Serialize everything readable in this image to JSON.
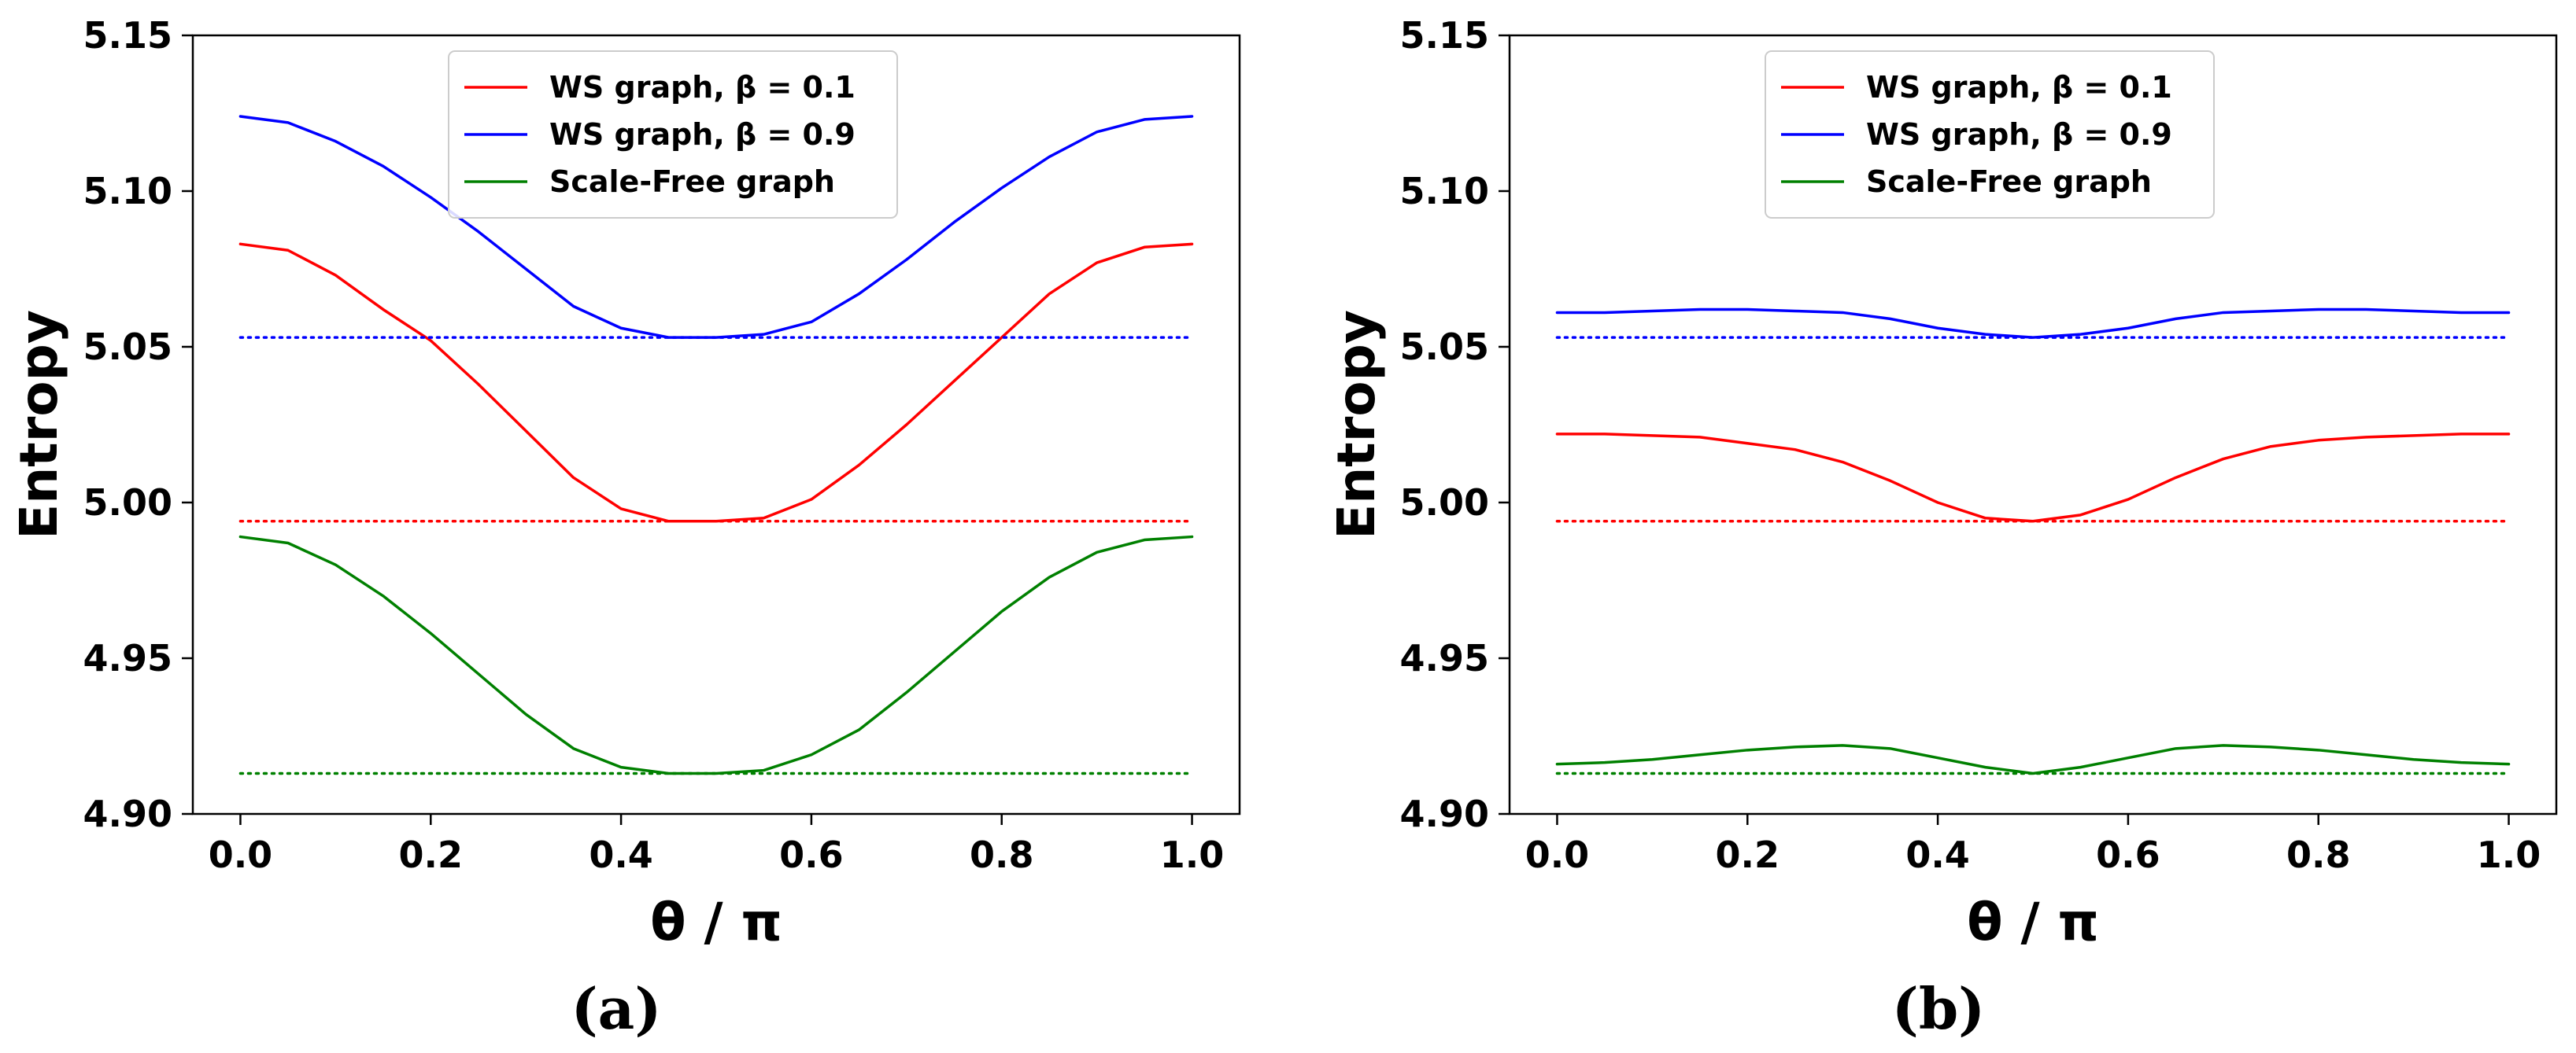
{
  "chart_data": [
    {
      "type": "line",
      "caption": "(a)",
      "xlabel": "θ / π",
      "ylabel": "Entropy",
      "xlim": [
        -0.05,
        1.05
      ],
      "ylim": [
        4.9,
        5.15
      ],
      "xticks": [
        "0.0",
        "0.2",
        "0.4",
        "0.6",
        "0.8",
        "1.0"
      ],
      "yticks": [
        "4.90",
        "4.95",
        "5.00",
        "5.05",
        "5.10",
        "5.15"
      ],
      "legend_position": "upper center",
      "series": [
        {
          "name": "WS graph, β = 0.1",
          "color": "#ff0000",
          "style": "solid",
          "x": [
            0.0,
            0.05,
            0.1,
            0.15,
            0.2,
            0.25,
            0.3,
            0.35,
            0.4,
            0.45,
            0.5,
            0.55,
            0.6,
            0.65,
            0.7,
            0.75,
            0.8,
            0.85,
            0.9,
            0.95,
            1.0
          ],
          "y": [
            5.083,
            5.081,
            5.073,
            5.062,
            5.052,
            5.038,
            5.023,
            5.008,
            4.998,
            4.994,
            4.994,
            4.995,
            5.001,
            5.012,
            5.025,
            5.039,
            5.053,
            5.067,
            5.077,
            5.082,
            5.083
          ]
        },
        {
          "name": "WS graph, β = 0.9",
          "color": "#0000ff",
          "style": "solid",
          "x": [
            0.0,
            0.05,
            0.1,
            0.15,
            0.2,
            0.25,
            0.3,
            0.35,
            0.4,
            0.45,
            0.5,
            0.55,
            0.6,
            0.65,
            0.7,
            0.75,
            0.8,
            0.85,
            0.9,
            0.95,
            1.0
          ],
          "y": [
            5.124,
            5.122,
            5.116,
            5.108,
            5.098,
            5.087,
            5.075,
            5.063,
            5.056,
            5.053,
            5.053,
            5.054,
            5.058,
            5.067,
            5.078,
            5.09,
            5.101,
            5.111,
            5.119,
            5.123,
            5.124
          ]
        },
        {
          "name": "Scale-Free graph",
          "color": "#008000",
          "style": "solid",
          "x": [
            0.0,
            0.05,
            0.1,
            0.15,
            0.2,
            0.25,
            0.3,
            0.35,
            0.4,
            0.45,
            0.5,
            0.55,
            0.6,
            0.65,
            0.7,
            0.75,
            0.8,
            0.85,
            0.9,
            0.95,
            1.0
          ],
          "y": [
            4.989,
            4.987,
            4.98,
            4.97,
            4.958,
            4.945,
            4.932,
            4.921,
            4.915,
            4.913,
            4.913,
            4.914,
            4.919,
            4.927,
            4.939,
            4.952,
            4.965,
            4.976,
            4.984,
            4.988,
            4.989
          ]
        },
        {
          "name": "",
          "color": "#0000ff",
          "style": "dotted",
          "x": [
            0.0,
            1.0
          ],
          "y": [
            5.053,
            5.053
          ]
        },
        {
          "name": "",
          "color": "#ff0000",
          "style": "dotted",
          "x": [
            0.0,
            1.0
          ],
          "y": [
            4.994,
            4.994
          ]
        },
        {
          "name": "",
          "color": "#008000",
          "style": "dotted",
          "x": [
            0.0,
            1.0
          ],
          "y": [
            4.913,
            4.913
          ]
        }
      ]
    },
    {
      "type": "line",
      "caption": "(b)",
      "xlabel": "θ / π",
      "ylabel": "Entropy",
      "xlim": [
        -0.05,
        1.05
      ],
      "ylim": [
        4.9,
        5.15
      ],
      "xticks": [
        "0.0",
        "0.2",
        "0.4",
        "0.6",
        "0.8",
        "1.0"
      ],
      "yticks": [
        "4.90",
        "4.95",
        "5.00",
        "5.05",
        "5.10",
        "5.15"
      ],
      "legend_position": "upper center",
      "series": [
        {
          "name": "WS graph, β = 0.1",
          "color": "#ff0000",
          "style": "solid",
          "x": [
            0.0,
            0.05,
            0.1,
            0.15,
            0.2,
            0.25,
            0.3,
            0.35,
            0.4,
            0.45,
            0.5,
            0.55,
            0.6,
            0.65,
            0.7,
            0.75,
            0.8,
            0.85,
            0.9,
            0.95,
            1.0
          ],
          "y": [
            5.022,
            5.022,
            5.0215,
            5.021,
            5.019,
            5.017,
            5.013,
            5.007,
            5.0,
            4.995,
            4.994,
            4.996,
            5.001,
            5.008,
            5.014,
            5.018,
            5.02,
            5.021,
            5.0215,
            5.022,
            5.022
          ]
        },
        {
          "name": "WS graph, β = 0.9",
          "color": "#0000ff",
          "style": "solid",
          "x": [
            0.0,
            0.05,
            0.1,
            0.15,
            0.2,
            0.25,
            0.3,
            0.35,
            0.4,
            0.45,
            0.5,
            0.55,
            0.6,
            0.65,
            0.7,
            0.75,
            0.8,
            0.85,
            0.9,
            0.95,
            1.0
          ],
          "y": [
            5.061,
            5.061,
            5.0615,
            5.062,
            5.062,
            5.0615,
            5.061,
            5.059,
            5.056,
            5.054,
            5.053,
            5.054,
            5.056,
            5.059,
            5.061,
            5.0615,
            5.062,
            5.062,
            5.0615,
            5.061,
            5.061
          ]
        },
        {
          "name": "Scale-Free graph",
          "color": "#008000",
          "style": "solid",
          "x": [
            0.0,
            0.05,
            0.1,
            0.15,
            0.2,
            0.25,
            0.3,
            0.35,
            0.4,
            0.45,
            0.5,
            0.55,
            0.6,
            0.65,
            0.7,
            0.75,
            0.8,
            0.85,
            0.9,
            0.95,
            1.0
          ],
          "y": [
            4.916,
            4.9165,
            4.9175,
            4.919,
            4.9205,
            4.9215,
            4.922,
            4.921,
            4.918,
            4.915,
            4.913,
            4.915,
            4.918,
            4.921,
            4.922,
            4.9215,
            4.9205,
            4.919,
            4.9175,
            4.9165,
            4.916
          ]
        },
        {
          "name": "",
          "color": "#0000ff",
          "style": "dotted",
          "x": [
            0.0,
            1.0
          ],
          "y": [
            5.053,
            5.053
          ]
        },
        {
          "name": "",
          "color": "#ff0000",
          "style": "dotted",
          "x": [
            0.0,
            1.0
          ],
          "y": [
            4.994,
            4.994
          ]
        },
        {
          "name": "",
          "color": "#008000",
          "style": "dotted",
          "x": [
            0.0,
            1.0
          ],
          "y": [
            4.913,
            4.913
          ]
        }
      ]
    }
  ]
}
